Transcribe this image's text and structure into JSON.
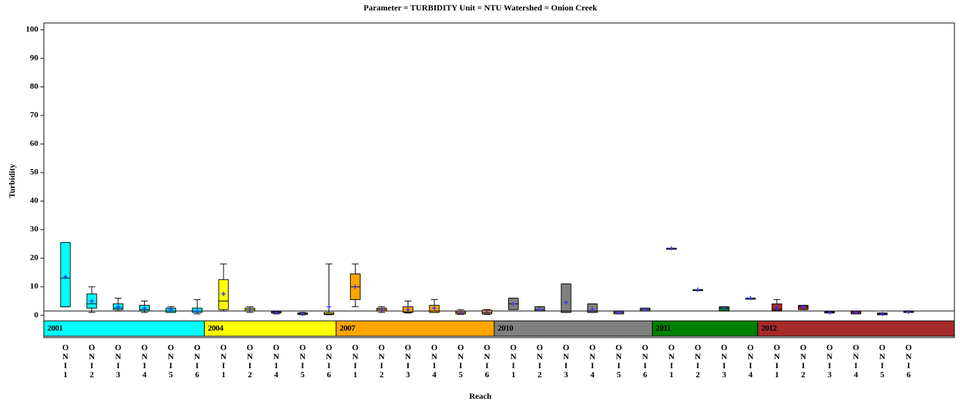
{
  "chart_data": {
    "type": "box",
    "title": "Parameter = TURBIDITY  Unit = NTU  Watershed = Onion  Creek",
    "xlabel": "Reach",
    "ylabel": "Turbidity",
    "ylim": [
      -7.8,
      102.4
    ],
    "yticks": [
      0,
      10,
      20,
      30,
      40,
      50,
      60,
      70,
      80,
      90,
      100
    ],
    "reference_line": 1.5,
    "mean_color": "#3333ff",
    "groups": [
      {
        "name": "2001",
        "color": "#00ffff",
        "categories": [
          "ONI1",
          "ONI2",
          "ONI3",
          "ONI4",
          "ONI5",
          "ONI6"
        ],
        "min": [
          3,
          1,
          1.5,
          1,
          1,
          0.5
        ],
        "q1": [
          3,
          2.5,
          2,
          1.5,
          1,
          1
        ],
        "median": [
          13,
          4,
          2.5,
          2,
          1.5,
          1.5
        ],
        "q3": [
          25.5,
          7.5,
          4,
          3.5,
          2.5,
          2.5
        ],
        "max": [
          25.5,
          10,
          6,
          5,
          3,
          5.5
        ],
        "mean": [
          13.5,
          5,
          3,
          2.5,
          2,
          1.5
        ]
      },
      {
        "name": "2004",
        "color": "#ffff00",
        "categories": [
          "ONI1",
          "ONI2",
          "ONI4",
          "ONI5",
          "ONI6"
        ],
        "min": [
          1.5,
          1,
          0.5,
          0.2,
          0.2
        ],
        "q1": [
          2,
          1.5,
          0.8,
          0.3,
          0.3
        ],
        "median": [
          5,
          2,
          1,
          0.5,
          0.5
        ],
        "q3": [
          12.5,
          2.5,
          1.3,
          0.8,
          1
        ],
        "max": [
          18,
          3,
          1.5,
          1,
          18
        ],
        "mean": [
          7.5,
          2,
          1,
          0.5,
          3
        ]
      },
      {
        "name": "2007",
        "color": "#ffa500",
        "categories": [
          "ONI1",
          "ONI2",
          "ONI3",
          "ONI4",
          "ONI5",
          "ONI6"
        ],
        "min": [
          3,
          1,
          0.8,
          1,
          0.3,
          0.3
        ],
        "q1": [
          5.5,
          1.5,
          1,
          1,
          0.5,
          0.5
        ],
        "median": [
          10,
          2,
          1.2,
          1.5,
          1,
          1
        ],
        "q3": [
          14.5,
          2.5,
          3,
          3.5,
          1.5,
          1.8
        ],
        "max": [
          18,
          3,
          5,
          5.5,
          2,
          2
        ],
        "mean": [
          10,
          2,
          2,
          2.5,
          1,
          1.2
        ]
      },
      {
        "name": "2010",
        "color": "#808080",
        "categories": [
          "ONI1",
          "ONI2",
          "ONI3",
          "ONI4",
          "ONI5",
          "ONI6"
        ],
        "min": [
          2,
          1.5,
          1,
          1,
          0.5,
          1.5
        ],
        "q1": [
          2,
          1.5,
          1,
          1,
          0.5,
          1.5
        ],
        "median": [
          4,
          2,
          1.5,
          1.5,
          1,
          2
        ],
        "q3": [
          6,
          3,
          11,
          4,
          1.5,
          2.5
        ],
        "max": [
          6,
          3,
          11,
          4,
          1.5,
          2.5
        ],
        "mean": [
          4,
          2,
          4.5,
          2,
          1,
          2
        ]
      },
      {
        "name": "2011",
        "color": "#008000",
        "categories": [
          "ONI1",
          "ONI2",
          "ONI3",
          "ONI4"
        ],
        "min": [
          23.5,
          9,
          1.5,
          6
        ],
        "q1": [
          23.5,
          9,
          1.5,
          6
        ],
        "median": [
          23.5,
          9,
          2.5,
          6
        ],
        "q3": [
          23.5,
          9,
          3,
          6
        ],
        "max": [
          23.5,
          9,
          3,
          6
        ],
        "mean": [
          23.5,
          9,
          2.5,
          6
        ]
      },
      {
        "name": "2012",
        "color": "#a52a2a",
        "categories": [
          "ONI1",
          "ONI2",
          "ONI3",
          "ONI4",
          "ONI5",
          "ONI6"
        ],
        "min": [
          1.5,
          2,
          0.8,
          0.5,
          0.2,
          1
        ],
        "q1": [
          1.5,
          2,
          0.8,
          0.5,
          0.2,
          1
        ],
        "median": [
          2,
          3,
          1,
          1,
          0.5,
          1.2
        ],
        "q3": [
          4,
          3.5,
          1.3,
          1.5,
          0.8,
          1.5
        ],
        "max": [
          5.5,
          3.5,
          1.3,
          1.5,
          0.8,
          1.5
        ],
        "mean": [
          2.5,
          3,
          1,
          1,
          0.5,
          1.2
        ]
      }
    ]
  }
}
